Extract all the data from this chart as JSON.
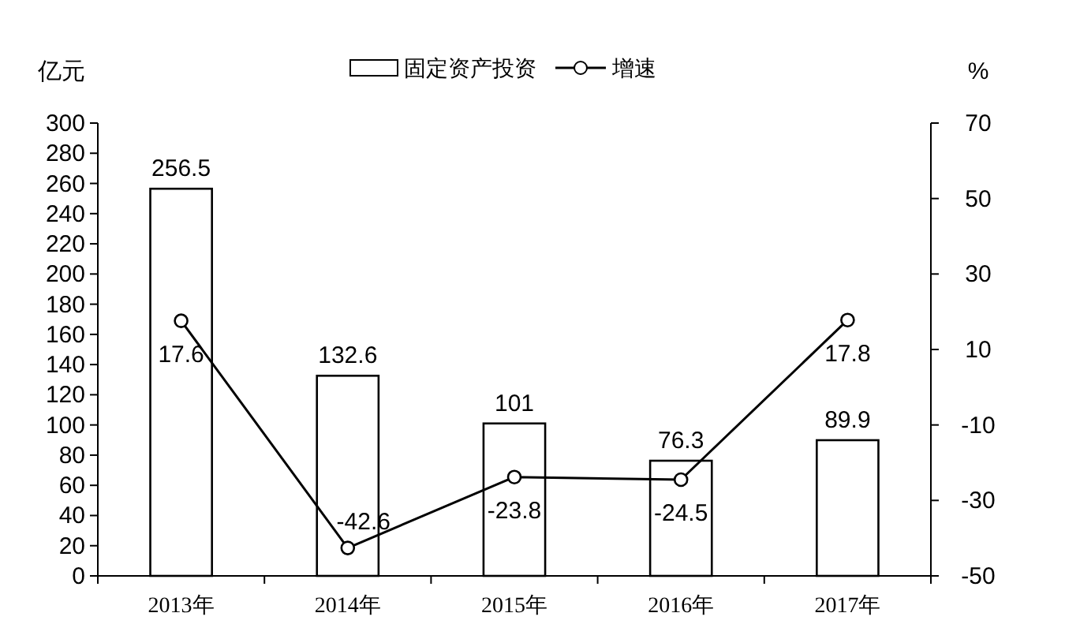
{
  "chart_data": {
    "type": "bar",
    "categories": [
      "2013年",
      "2014年",
      "2015年",
      "2016年",
      "2017年"
    ],
    "ylabel": "亿元",
    "y2label": "%",
    "ylim": [
      0,
      300
    ],
    "yticks": [
      0,
      20,
      40,
      60,
      80,
      100,
      120,
      140,
      160,
      180,
      200,
      220,
      240,
      260,
      280,
      300
    ],
    "y2lim": [
      -50,
      70
    ],
    "y2ticks": [
      -50,
      -30,
      -10,
      10,
      30,
      50,
      70
    ],
    "legend": "top",
    "grid": false,
    "data_labels": true,
    "marker": "circle",
    "series": [
      {
        "name": "固定资产投资",
        "color": "#ffffff",
        "values": [
          256.5,
          132.6,
          101,
          76.3,
          89.9
        ]
      },
      {
        "name": "增速",
        "type": "line",
        "axis": "y2",
        "color": "#000000",
        "values": [
          17.6,
          -42.6,
          -23.8,
          -24.5,
          17.8
        ]
      }
    ]
  }
}
